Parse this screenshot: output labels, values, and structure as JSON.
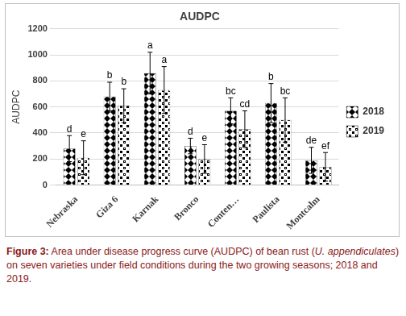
{
  "chart_data": {
    "type": "bar",
    "title": "AUDPC",
    "y_label": "AUDPC",
    "categories": [
      "Nebraska",
      "Giza 6",
      "Karnak",
      "Bronco",
      "Conten…",
      "Paulista",
      "Montcalm"
    ],
    "series": [
      {
        "name": "2018",
        "color": "#000000",
        "values": [
          280,
          680,
          860,
          300,
          570,
          630,
          190
        ],
        "errors": [
          100,
          110,
          160,
          60,
          100,
          150,
          100
        ],
        "letters": [
          "d",
          "b",
          "a",
          "d",
          "bc",
          "b",
          "de"
        ]
      },
      {
        "name": "2019",
        "color": "#000000",
        "values": [
          210,
          610,
          730,
          200,
          430,
          500,
          140
        ],
        "errors": [
          130,
          130,
          180,
          110,
          140,
          170,
          110
        ],
        "letters": [
          "e",
          "b",
          "a",
          "e",
          "cd",
          "bc",
          "ef"
        ]
      }
    ],
    "ylim": [
      0,
      1200
    ],
    "yticks": [
      0,
      200,
      400,
      600,
      800,
      1000,
      1200
    ],
    "grid": true,
    "legend": "right"
  },
  "caption": [
    {
      "text": "Figure 3:",
      "style": "bold"
    },
    {
      "text": " Area under disease progress curve (AUDPC) of bean rust (",
      "style": "normal"
    },
    {
      "text": "U. appendiculates",
      "style": "italic"
    },
    {
      "text": ") on seven varieties under field conditions during the two growing seasons; 2018 and 2019.",
      "style": "normal"
    }
  ]
}
